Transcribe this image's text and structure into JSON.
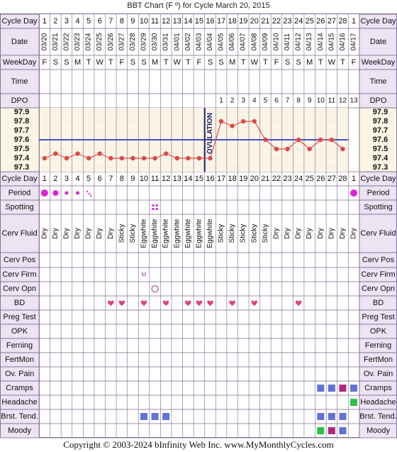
{
  "title": "BBT Chart (F º) for Cycle March 20, 2015",
  "footer": "Copyright © 2003-2024 bInfinity Web Inc.     www.MyMonthlyCycles.com",
  "colors": {
    "label_bg": "#ECE3F3",
    "grid": "#7A6A8C",
    "temp_bg": "#FBF5E6",
    "temp_line": "#E04848",
    "cover_line": "#2A3BC8",
    "ovulation_line": "#18206A",
    "heart": "#E0407A",
    "period": "#E020E0",
    "square_blue": "#6272D6",
    "square_purple": "#B0287A",
    "square_green": "#2EBF48"
  },
  "row_labels": {
    "cycle_day": "Cycle Day",
    "date": "Date",
    "weekday": "WeekDay",
    "time": "Time",
    "dpo": "DPO",
    "period": "Period",
    "spotting": "Spotting",
    "cerv_fluid": "Cerv Fluid",
    "cerv_pos": "Cerv Pos",
    "cerv_firm": "Cerv Firm",
    "cerv_opn": "Cerv Opn",
    "bd": "BD",
    "preg_test": "Preg Test",
    "opk": "OPK",
    "ferning": "Ferning",
    "fertmon": "FertMon",
    "ov_pain": "Ov. Pain",
    "cramps": "Cramps",
    "headache": "Headache",
    "brst_tend": "Brst. Tend.",
    "moody": "Moody"
  },
  "days": [
    "1",
    "2",
    "3",
    "4",
    "5",
    "6",
    "7",
    "8",
    "9",
    "10",
    "11",
    "12",
    "13",
    "14",
    "15",
    "16",
    "17",
    "18",
    "19",
    "20",
    "21",
    "22",
    "23",
    "24",
    "25",
    "26",
    "27",
    "28",
    "1"
  ],
  "dates": [
    "03/20",
    "03/21",
    "03/22",
    "03/23",
    "03/24",
    "03/25",
    "03/26",
    "03/27",
    "03/28",
    "03/29",
    "03/30",
    "03/31",
    "04/01",
    "04/02",
    "04/03",
    "04/04",
    "04/05",
    "04/06",
    "04/07",
    "04/08",
    "04/09",
    "04/10",
    "04/11",
    "04/12",
    "04/13",
    "04/14",
    "04/15",
    "04/16",
    "04/17"
  ],
  "weekdays": [
    "F",
    "S",
    "S",
    "M",
    "T",
    "W",
    "T",
    "F",
    "S",
    "S",
    "M",
    "T",
    "W",
    "T",
    "F",
    "S",
    "S",
    "M",
    "T",
    "W",
    "T",
    "F",
    "S",
    "S",
    "M",
    "T",
    "W",
    "T",
    "F"
  ],
  "dpo": [
    "",
    "",
    "",
    "",
    "",
    "",
    "",
    "",
    "",
    "",
    "",
    "",
    "",
    "",
    "",
    "",
    "1",
    "2",
    "3",
    "4",
    "5",
    "6",
    "7",
    "8",
    "9",
    "10",
    "11",
    "12",
    "13"
  ],
  "ovulation_label": "OVULATION",
  "chart_data": {
    "type": "line",
    "title": "BBT Chart (F º) for Cycle March 20, 2015",
    "x": [
      1,
      2,
      3,
      4,
      5,
      6,
      7,
      8,
      9,
      10,
      11,
      12,
      13,
      14,
      15,
      16,
      17,
      18,
      19,
      20,
      21,
      22,
      23,
      24,
      25,
      26,
      27,
      28
    ],
    "y_ticks": [
      "97.9",
      "97.8",
      "97.7",
      "97.6",
      "97.5",
      "97.4",
      "97.3"
    ],
    "ylim": [
      97.3,
      97.9
    ],
    "series": [
      {
        "values": [
          97.4,
          97.45,
          97.4,
          97.45,
          97.4,
          97.45,
          97.4,
          97.4,
          97.4,
          97.4,
          97.4,
          97.45,
          97.4,
          97.4,
          97.4,
          97.4,
          97.8,
          97.75,
          97.8,
          97.8,
          97.6,
          97.5,
          97.5,
          97.6,
          97.5,
          97.6,
          97.6,
          97.5
        ]
      }
    ],
    "coverline": 97.6,
    "ovulation_after_day": 15,
    "grid": true
  },
  "cerv_fluid": [
    "Dry",
    "Dry",
    "Dry",
    "Dry",
    "Dry",
    "Dry",
    "Dry",
    "Sticky",
    "Sticky",
    "Eggwhite",
    "Eggwhite",
    "Eggwhite",
    "Eggwhite",
    "Eggwhite",
    "Eggwhite",
    "Eggwhite",
    "Sticky",
    "Sticky",
    "Sticky",
    "Sticky",
    "Sticky",
    "Dry",
    "Dry",
    "Dry",
    "Dry",
    "Dry",
    "Dry",
    "Dry",
    "Dry"
  ],
  "period": [
    3,
    2,
    1,
    1,
    0.5,
    0,
    0,
    0,
    0,
    0,
    0,
    0,
    0,
    0,
    0,
    0,
    0,
    0,
    0,
    0,
    0,
    0,
    0,
    0,
    0,
    0,
    0,
    0,
    3
  ],
  "spotting_days": [
    11
  ],
  "cerv_firm": {
    "day": 10,
    "text": "M"
  },
  "cerv_opn_days": [
    11
  ],
  "bd_days": [
    7,
    8,
    10,
    12,
    14,
    15,
    16,
    18,
    20,
    24
  ],
  "cramps": {
    "blue": [
      26,
      27,
      29
    ],
    "purple": [
      28
    ]
  },
  "headache": {
    "green": [
      29
    ]
  },
  "brst_tend": {
    "blue": [
      10,
      11,
      12,
      26,
      27,
      28
    ]
  },
  "moody": {
    "green": [
      26
    ],
    "purple": [
      27
    ],
    "blue": [
      28
    ]
  },
  "footer_site": "www.MyMonthlyCycles.com"
}
